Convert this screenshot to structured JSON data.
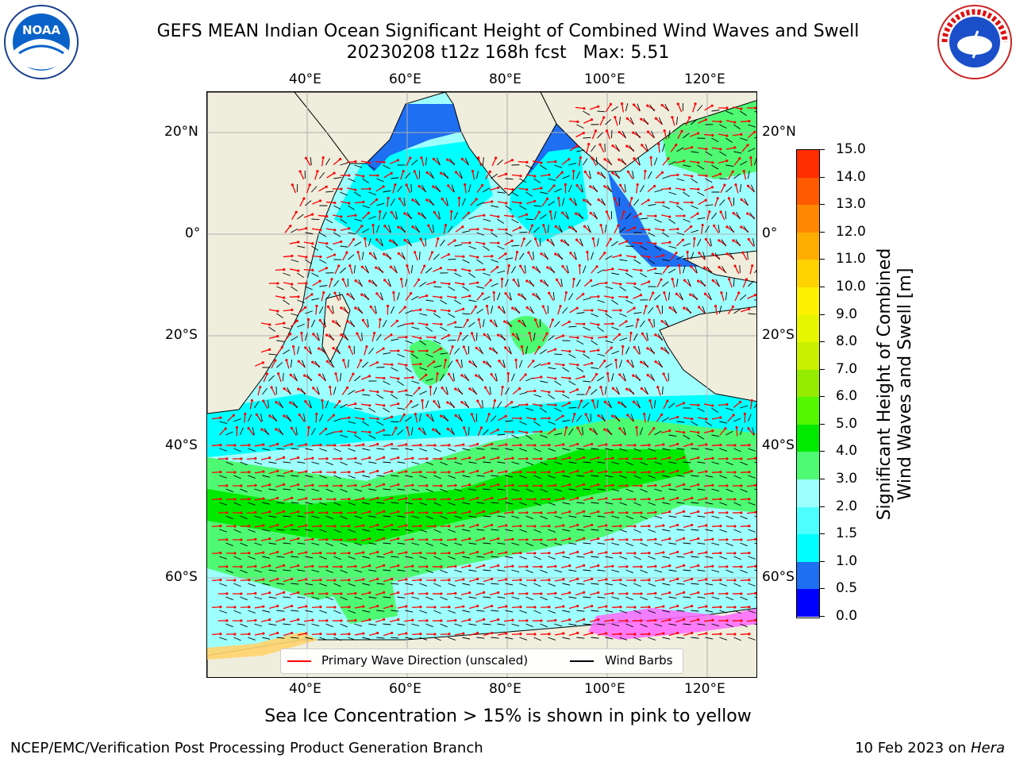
{
  "title": {
    "line1": "GEFS MEAN Indian Ocean Significant Height of Combined Wind Waves and Swell",
    "line2": "20230208 t12z 168h fcst   Max: 5.51"
  },
  "map": {
    "lon_labels": [
      "40°E",
      "60°E",
      "80°E",
      "100°E",
      "120°E"
    ],
    "lat_labels": [
      "20°N",
      "0°",
      "20°S",
      "40°S",
      "60°S"
    ],
    "colors": {
      "land": "#efeddc",
      "ocean_low": "#00ffff",
      "ocean_mid": "#9effff",
      "ocean_high": "#4dfa72",
      "ocean_peak": "#00ea00",
      "coast_blue": "#1e6ff2",
      "grid": "#b0b0b0",
      "wave_arrow": "#ff0000",
      "wind_barb": "#000000"
    }
  },
  "colorbar": {
    "title_line1": "Significant Height of Combined",
    "title_line2": "Wind Waves and Swell [m]",
    "tick_labels": [
      "0.0",
      "0.5",
      "1.0",
      "1.5",
      "2.0",
      "3.0",
      "4.0",
      "5.0",
      "6.0",
      "7.0",
      "8.0",
      "9.0",
      "10.0",
      "11.0",
      "12.0",
      "13.0",
      "14.0",
      "15.0"
    ],
    "colors": [
      "#0000ff",
      "#1e6ff2",
      "#00ffff",
      "#4dffff",
      "#9effff",
      "#4dfa72",
      "#00ea00",
      "#53f700",
      "#95ec00",
      "#c8f000",
      "#e6f500",
      "#fff200",
      "#ffd200",
      "#ffae00",
      "#ff8700",
      "#ff5a00",
      "#ff2d00"
    ]
  },
  "legend": {
    "wave_label": "Primary Wave Direction (unscaled)",
    "wind_label": "Wind Barbs"
  },
  "sea_ice_note": "Sea Ice Concentration > 15% is shown in pink to yellow",
  "footer": {
    "left": "NCEP/EMC/Verification Post Processing Product Generation Branch",
    "right_date": "10 Feb 2023 on ",
    "right_host": "Hera"
  },
  "logos": {
    "left_logo_text": "NOAA",
    "right_logo_text": "NATIONAL WEATHER SERVICE"
  }
}
